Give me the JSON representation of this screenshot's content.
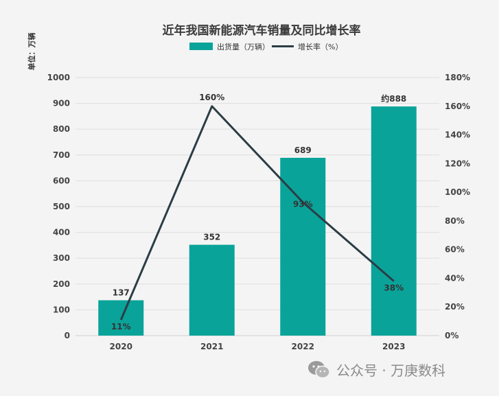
{
  "chart_data": {
    "type": "bar",
    "title": "近年我国新能源汽车销量及同比增长率",
    "y_unit_label": "单位：万辆",
    "categories": [
      "2020",
      "2021",
      "2022",
      "2023"
    ],
    "series": [
      {
        "name": "出货量（万辆）",
        "type": "bar",
        "axis": "left",
        "values": [
          137,
          352,
          689,
          888
        ],
        "data_labels": [
          "137",
          "352",
          "689",
          "约888"
        ],
        "color": "#0aa39a"
      },
      {
        "name": "增长率（%）",
        "type": "line",
        "axis": "right",
        "values": [
          11,
          160,
          93,
          38
        ],
        "data_labels": [
          "11%",
          "160%",
          "93%",
          "38%"
        ],
        "color": "#2b3d45"
      }
    ],
    "ylim_left": [
      0,
      1000
    ],
    "yticks_left": [
      "0",
      "100",
      "200",
      "300",
      "400",
      "500",
      "600",
      "700",
      "800",
      "900",
      "1000"
    ],
    "ylim_right": [
      0,
      180
    ],
    "yticks_right": [
      "0%",
      "20%",
      "40%",
      "60%",
      "80%",
      "100%",
      "120%",
      "140%",
      "160%",
      "180%"
    ],
    "grid": true,
    "legend_position": "top-center"
  },
  "watermark": {
    "icon": "wechat-icon",
    "text": "公众号 · 万庚数科"
  }
}
